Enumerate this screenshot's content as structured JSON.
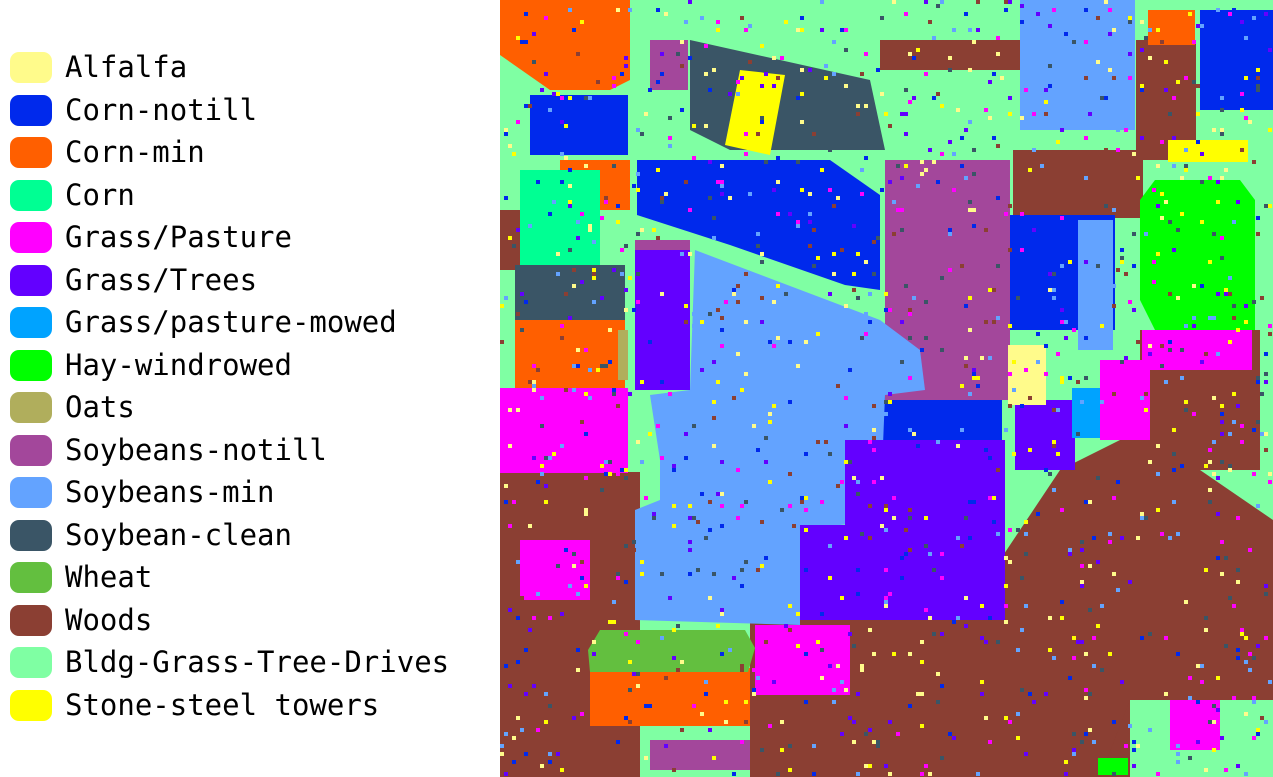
{
  "legend": {
    "items": [
      {
        "label": "Alfalfa",
        "color": "#fffb8b"
      },
      {
        "label": "Corn-notill",
        "color": "#0029ec"
      },
      {
        "label": "Corn-min",
        "color": "#ff5f00"
      },
      {
        "label": "Corn",
        "color": "#00ff93"
      },
      {
        "label": "Grass/Pasture",
        "color": "#ff00ff"
      },
      {
        "label": "Grass/Trees",
        "color": "#6300ff"
      },
      {
        "label": "Grass/pasture-mowed",
        "color": "#00a3ff"
      },
      {
        "label": "Hay-windrowed",
        "color": "#00ff00"
      },
      {
        "label": "Oats",
        "color": "#b0ae5c"
      },
      {
        "label": "Soybeans-notill",
        "color": "#a3479b"
      },
      {
        "label": "Soybeans-min",
        "color": "#63a3ff"
      },
      {
        "label": "Soybean-clean",
        "color": "#3a5566"
      },
      {
        "label": "Wheat",
        "color": "#63bf3f"
      },
      {
        "label": "Woods",
        "color": "#8b3f33"
      },
      {
        "label": "Bldg-Grass-Tree-Drives",
        "color": "#7fffa3"
      },
      {
        "label": "Stone-steel towers",
        "color": "#ffff00"
      }
    ]
  },
  "map": {
    "background_color": "#7fffa3",
    "noise_colors": [
      "#0029ec",
      "#ff00ff",
      "#6300ff",
      "#8b3f33",
      "#63a3ff",
      "#ffff00",
      "#3a5566",
      "#fffb8b"
    ]
  }
}
